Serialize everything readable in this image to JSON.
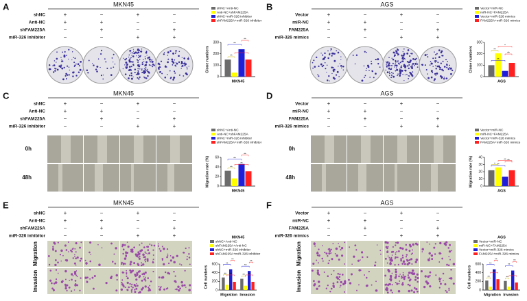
{
  "panels": [
    {
      "letter": "A",
      "title": "MKN45",
      "rows": [
        {
          "label": "shNC",
          "signs": [
            "+",
            "−",
            "+",
            "−"
          ]
        },
        {
          "label": "Anti-NC",
          "signs": [
            "+",
            "+",
            "−",
            "−"
          ]
        },
        {
          "label": "shFAM225A",
          "signs": [
            "−",
            "+",
            "−",
            "+"
          ]
        },
        {
          "label": "miR-326 inhibitor",
          "signs": [
            "−",
            "−",
            "+",
            "+"
          ]
        }
      ]
    },
    {
      "letter": "B",
      "title": "AGS",
      "rows": [
        {
          "label": "Vector",
          "signs": [
            "+",
            "−",
            "+",
            "−"
          ]
        },
        {
          "label": "miR-NC",
          "signs": [
            "+",
            "+",
            "−",
            "−"
          ]
        },
        {
          "label": "FAM225A",
          "signs": [
            "−",
            "+",
            "−",
            "+"
          ]
        },
        {
          "label": "miR-326 mimics",
          "signs": [
            "−",
            "−",
            "+",
            "+"
          ]
        }
      ]
    },
    {
      "letter": "C",
      "title": "MKN45",
      "rows": [
        {
          "label": "shNC",
          "signs": [
            "+",
            "−",
            "+",
            "−"
          ]
        },
        {
          "label": "Anti-NC",
          "signs": [
            "+",
            "+",
            "−",
            "−"
          ]
        },
        {
          "label": "shFAM225A",
          "signs": [
            "−",
            "+",
            "−",
            "+"
          ]
        },
        {
          "label": "miR-326 inhibitor",
          "signs": [
            "−",
            "−",
            "+",
            "+"
          ]
        }
      ],
      "image_rows": [
        "0h",
        "48h"
      ]
    },
    {
      "letter": "D",
      "title": "AGS",
      "rows": [
        {
          "label": "Vector",
          "signs": [
            "+",
            "−",
            "+",
            "−"
          ]
        },
        {
          "label": "miR-NC",
          "signs": [
            "+",
            "+",
            "−",
            "−"
          ]
        },
        {
          "label": "FAM225A",
          "signs": [
            "−",
            "+",
            "−",
            "+"
          ]
        },
        {
          "label": "miR-326 mimics",
          "signs": [
            "−",
            "−",
            "+",
            "+"
          ]
        }
      ],
      "image_rows": [
        "0h",
        "48h"
      ]
    },
    {
      "letter": "E",
      "title": "MKN45",
      "rows": [
        {
          "label": "shNC",
          "signs": [
            "+",
            "−",
            "+",
            "−"
          ]
        },
        {
          "label": "Anti-NC",
          "signs": [
            "+",
            "+",
            "−",
            "−"
          ]
        },
        {
          "label": "shFAM225A",
          "signs": [
            "−",
            "+",
            "−",
            "+"
          ]
        },
        {
          "label": "miR-326 inhibitor",
          "signs": [
            "−",
            "−",
            "+",
            "+"
          ]
        }
      ],
      "image_rows": [
        "Migration",
        "Invasion"
      ]
    },
    {
      "letter": "F",
      "title": "AGS",
      "rows": [
        {
          "label": "Vector",
          "signs": [
            "+",
            "−",
            "+",
            "−"
          ]
        },
        {
          "label": "miR-NC",
          "signs": [
            "+",
            "+",
            "−",
            "−"
          ]
        },
        {
          "label": "FAM225A",
          "signs": [
            "−",
            "+",
            "−",
            "+"
          ]
        },
        {
          "label": "miR-326 mimics",
          "signs": [
            "−",
            "−",
            "+",
            "+"
          ]
        }
      ],
      "image_rows": [
        "Migration",
        "Invasion"
      ]
    }
  ],
  "chart_data": [
    {
      "type": "bar",
      "ylabel": "Clone numbers",
      "categories": [
        "MKN45"
      ],
      "ylim": [
        0,
        300
      ],
      "yticks": [
        0,
        100,
        200,
        300
      ],
      "significance": [
        "**",
        "**",
        "**",
        "**"
      ],
      "series": [
        {
          "name": "shNC+Anti-NC",
          "color": "#6b6b6b",
          "values": [
            150
          ]
        },
        {
          "name": "Anti-NC+shFAM225A",
          "color": "#ffff00",
          "values": [
            35
          ]
        },
        {
          "name": "shNC+miR-326 inhibitor",
          "color": "#1f1fd8",
          "values": [
            240
          ]
        },
        {
          "name": "shFAM225A+miR-326 inhibitor",
          "color": "#ff2020",
          "values": [
            150
          ]
        }
      ]
    },
    {
      "type": "bar",
      "ylabel": "Clone numbers",
      "categories": [
        "AGS"
      ],
      "ylim": [
        0,
        300
      ],
      "yticks": [
        0,
        100,
        200,
        300
      ],
      "significance": [
        "**",
        "**",
        "*",
        "**"
      ],
      "series": [
        {
          "name": "Vector+miR-NC",
          "color": "#6b6b6b",
          "values": [
            100
          ]
        },
        {
          "name": "miR-NC+FAM225A",
          "color": "#ffff00",
          "values": [
            205
          ]
        },
        {
          "name": "Vector+miR-326 mimics",
          "color": "#1f1fd8",
          "values": [
            50
          ]
        },
        {
          "name": "FAM225A+miR-326 mimics",
          "color": "#ff2020",
          "values": [
            120
          ]
        }
      ]
    },
    {
      "type": "bar",
      "ylabel": "Migration rate (%)",
      "categories": [
        "MKN45"
      ],
      "ylim": [
        0,
        60
      ],
      "yticks": [
        0,
        20,
        40,
        60
      ],
      "significance": [
        "**",
        "**",
        "**",
        "**"
      ],
      "series": [
        {
          "name": "shNC+Anti-NC",
          "color": "#6b6b6b",
          "values": [
            32
          ]
        },
        {
          "name": "Anti-NC+shFAM225A",
          "color": "#ffff00",
          "values": [
            16
          ]
        },
        {
          "name": "shNC+miR-326 inhibitor",
          "color": "#1f1fd8",
          "values": [
            46
          ]
        },
        {
          "name": "shFAM225A+miR-326 inhibitor",
          "color": "#ff2020",
          "values": [
            31
          ]
        }
      ]
    },
    {
      "type": "bar",
      "ylabel": "Migration rate (%)",
      "categories": [
        "AGS"
      ],
      "ylim": [
        0,
        40
      ],
      "yticks": [
        0,
        10,
        20,
        30,
        40
      ],
      "significance": [
        "*",
        "**",
        "**",
        "**"
      ],
      "series": [
        {
          "name": "Vector+miR-NC",
          "color": "#6b6b6b",
          "values": [
            22
          ]
        },
        {
          "name": "miR-NC+FAM225A",
          "color": "#ffff00",
          "values": [
            26
          ]
        },
        {
          "name": "Vector+miR-326 mimics",
          "color": "#1f1fd8",
          "values": [
            13
          ]
        },
        {
          "name": "FAM225A+miR-326 mimics",
          "color": "#ff2020",
          "values": [
            22
          ]
        }
      ]
    },
    {
      "type": "bar",
      "title": "MKN45",
      "ylabel": "Cell numbers",
      "categories": [
        "Migration",
        "Invasion"
      ],
      "ylim": [
        0,
        600
      ],
      "yticks": [
        0,
        200,
        400,
        600
      ],
      "significance": [
        "**",
        "**",
        "**",
        "**",
        "**",
        "**",
        "**",
        "**"
      ],
      "series": [
        {
          "name": "shNC+Anti-NC",
          "color": "#6b6b6b",
          "values": [
            290,
            260
          ]
        },
        {
          "name": "shFAM225A+Anti-NC",
          "color": "#ffff00",
          "values": [
            120,
            100
          ]
        },
        {
          "name": "shNC+miR-326 inhibitor",
          "color": "#1f1fd8",
          "values": [
            480,
            440
          ]
        },
        {
          "name": "shFAM225A+miR-326 inhibitor",
          "color": "#ff2020",
          "values": [
            190,
            190
          ]
        }
      ]
    },
    {
      "type": "bar",
      "title": "AGS",
      "ylabel": "Cell numbers",
      "categories": [
        "Migration",
        "Invasion"
      ],
      "ylim": [
        0,
        600
      ],
      "yticks": [
        0,
        200,
        400,
        600
      ],
      "significance": [
        "**",
        "**",
        "**",
        "**",
        "**",
        "**",
        "**",
        "**"
      ],
      "series": [
        {
          "name": "Vector+miR-NC",
          "color": "#6b6b6b",
          "values": [
            220,
            210
          ]
        },
        {
          "name": "miR-NC+FAM225A",
          "color": "#ffff00",
          "values": [
            80,
            80
          ]
        },
        {
          "name": "Vector+miR-326 mimics",
          "color": "#1f1fd8",
          "values": [
            480,
            450
          ]
        },
        {
          "name": "FAM225A+miR-326 mimics",
          "color": "#ff2020",
          "values": [
            250,
            175
          ]
        }
      ]
    }
  ]
}
